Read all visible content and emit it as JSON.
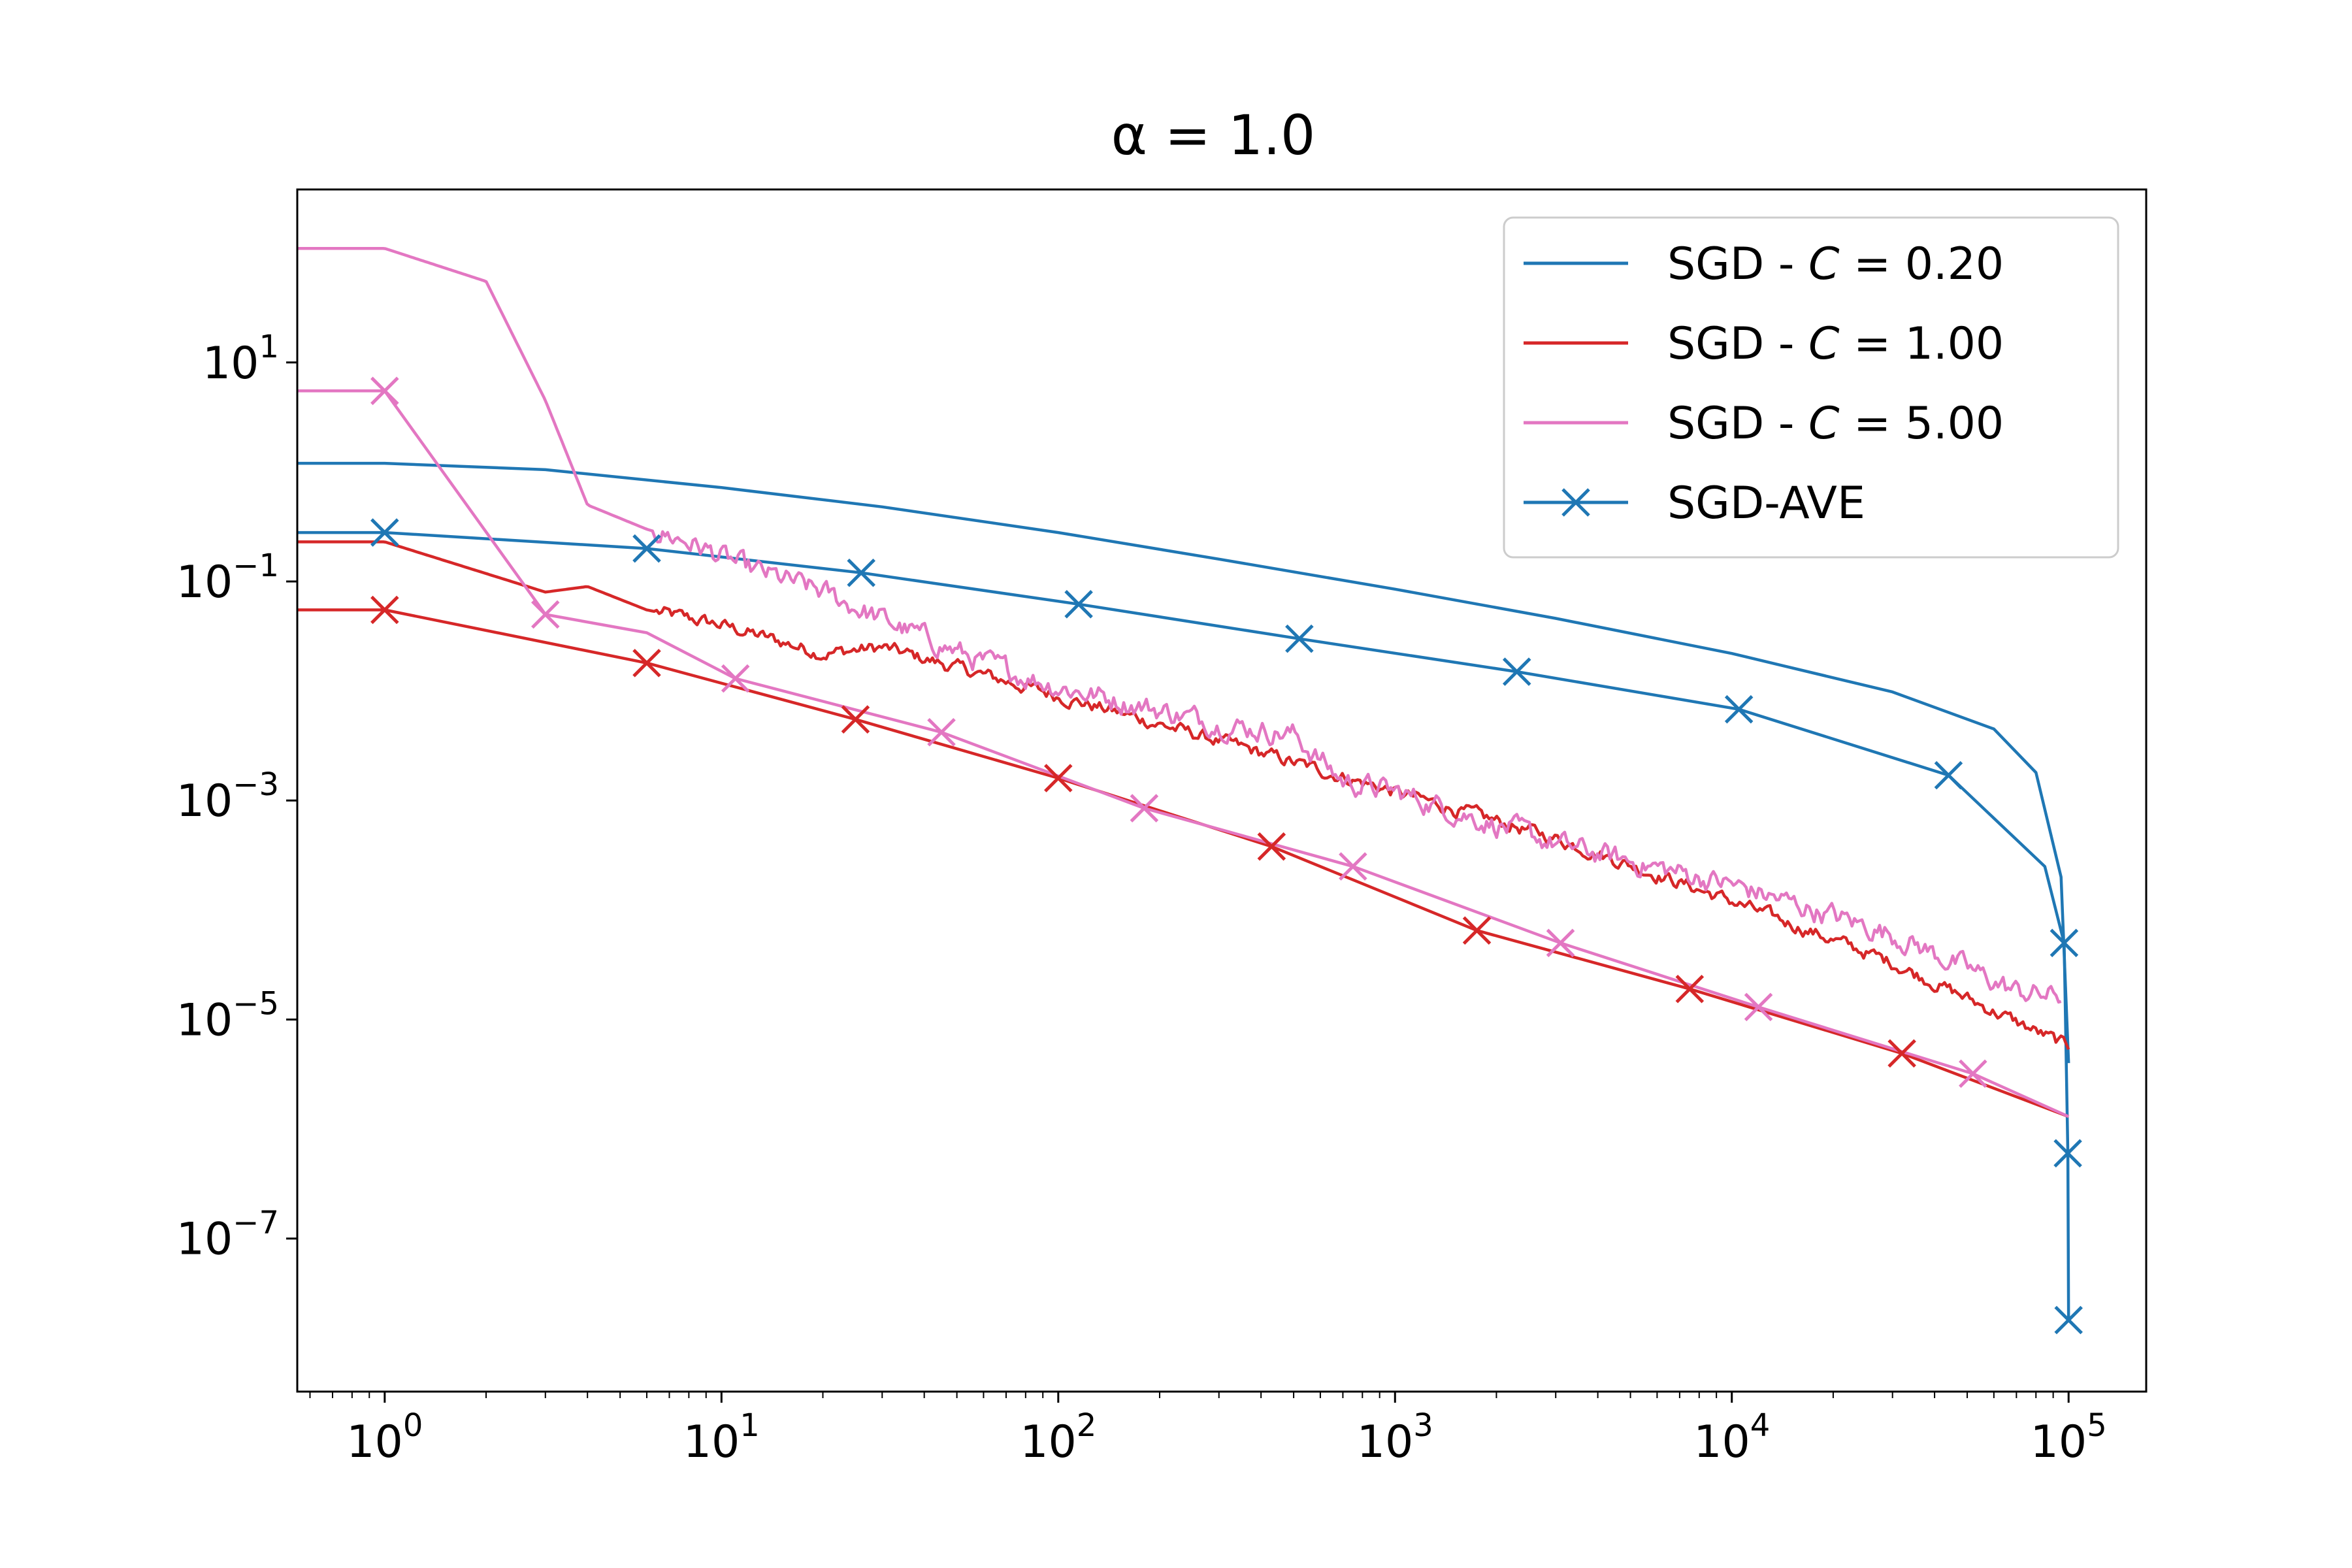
{
  "chart_data": {
    "type": "line",
    "title": "α = 1.0",
    "xscale": "log",
    "yscale": "log",
    "xlim": [
      0.55,
      170000
    ],
    "ylim": [
      4e-09,
      380
    ],
    "x_ticks": [
      {
        "base": "10",
        "exp": "0",
        "value": 1
      },
      {
        "base": "10",
        "exp": "1",
        "value": 10
      },
      {
        "base": "10",
        "exp": "2",
        "value": 100
      },
      {
        "base": "10",
        "exp": "3",
        "value": 1000
      },
      {
        "base": "10",
        "exp": "4",
        "value": 10000
      },
      {
        "base": "10",
        "exp": "5",
        "value": 100000
      }
    ],
    "y_ticks": [
      {
        "base": "10",
        "exp": "1",
        "value": 10
      },
      {
        "base": "10",
        "exp": "−1",
        "value": 0.1
      },
      {
        "base": "10",
        "exp": "−3",
        "value": 0.001
      },
      {
        "base": "10",
        "exp": "−5",
        "value": 1e-05
      },
      {
        "base": "10",
        "exp": "−7",
        "value": 1e-07
      }
    ],
    "legend_position": "top-right",
    "legend": [
      {
        "prefix": "SGD - ",
        "symbol": "C",
        "suffix": " = 0.20",
        "color": "#1f77b4",
        "marker": "line"
      },
      {
        "prefix": "SGD - ",
        "symbol": "C",
        "suffix": " = 1.00",
        "color": "#d62728",
        "marker": "line"
      },
      {
        "prefix": "SGD - ",
        "symbol": "C",
        "suffix": " = 5.00",
        "color": "#e377c2",
        "marker": "line"
      },
      {
        "prefix": "SGD-AVE",
        "symbol": "",
        "suffix": "",
        "color": "#1f77b4",
        "marker": "x"
      }
    ],
    "series": [
      {
        "name": "SGD - C = 0.20",
        "color": "#1f77b4",
        "marker": "none",
        "noise": 0,
        "points": [
          [
            0.55,
            1.2
          ],
          [
            1,
            1.2
          ],
          [
            3,
            1.05
          ],
          [
            10,
            0.72
          ],
          [
            30,
            0.48
          ],
          [
            100,
            0.28
          ],
          [
            300,
            0.16
          ],
          [
            1000,
            0.085
          ],
          [
            3000,
            0.046
          ],
          [
            10000,
            0.022
          ],
          [
            30000,
            0.0098
          ],
          [
            60000,
            0.0045
          ],
          [
            80000,
            0.0018
          ],
          [
            95000,
            0.0002
          ],
          [
            100000,
            4e-06
          ]
        ]
      },
      {
        "name": "SGD-AVE (C = 0.20)",
        "color": "#1f77b4",
        "marker": "x",
        "noise": 0,
        "points": [
          [
            0.55,
            0.28
          ],
          [
            1,
            0.28
          ],
          [
            6,
            0.2
          ],
          [
            26,
            0.12
          ],
          [
            115,
            0.062
          ],
          [
            520,
            0.03
          ],
          [
            2300,
            0.015
          ],
          [
            10500,
            0.0068
          ],
          [
            44000,
            0.0017
          ],
          [
            85000,
            0.00025
          ],
          [
            97000,
            5e-05
          ],
          [
            99500,
            6e-07
          ],
          [
            100000,
            1.8e-08
          ]
        ],
        "marker_points": [
          [
            1,
            0.28
          ],
          [
            6,
            0.2
          ],
          [
            26,
            0.12
          ],
          [
            115,
            0.062
          ],
          [
            520,
            0.03
          ],
          [
            2300,
            0.015
          ],
          [
            10500,
            0.0068
          ],
          [
            44000,
            0.0017
          ],
          [
            97000,
            5e-05
          ],
          [
            99500,
            6e-07
          ],
          [
            100000,
            1.8e-08
          ]
        ]
      },
      {
        "name": "SGD - C = 1.00",
        "color": "#d62728",
        "marker": "none",
        "noise": 0.1,
        "points": [
          [
            0.55,
            0.23
          ],
          [
            1,
            0.23
          ],
          [
            3,
            0.08
          ],
          [
            4,
            0.09
          ],
          [
            6,
            0.055
          ],
          [
            10,
            0.04
          ],
          [
            20,
            0.022
          ],
          [
            30,
            0.025
          ],
          [
            60,
            0.014
          ],
          [
            100,
            0.009
          ],
          [
            300,
            0.0035
          ],
          [
            1000,
            0.0012
          ],
          [
            3000,
            0.00045
          ],
          [
            10000,
            0.00012
          ],
          [
            30000,
            3.3e-05
          ],
          [
            100000,
            5.6e-06
          ]
        ]
      },
      {
        "name": "SGD-AVE (C = 1.00)",
        "color": "#d62728",
        "marker": "x",
        "noise": 0,
        "points": [
          [
            0.55,
            0.055
          ],
          [
            1,
            0.055
          ],
          [
            6,
            0.018
          ],
          [
            25,
            0.0055
          ],
          [
            100,
            0.0016
          ],
          [
            430,
            0.00038
          ],
          [
            1750,
            6.5e-05
          ],
          [
            7500,
            1.9e-05
          ],
          [
            32000,
            4.9e-06
          ],
          [
            100000,
            1.3e-06
          ]
        ],
        "marker_points": [
          [
            1,
            0.055
          ],
          [
            6,
            0.018
          ],
          [
            25,
            0.0055
          ],
          [
            100,
            0.0016
          ],
          [
            430,
            0.00038
          ],
          [
            1750,
            6.5e-05
          ],
          [
            7500,
            1.9e-05
          ],
          [
            32000,
            4.9e-06
          ]
        ]
      },
      {
        "name": "SGD - C = 5.00",
        "color": "#e377c2",
        "marker": "none",
        "noise": 0.17,
        "points": [
          [
            0.55,
            110
          ],
          [
            1,
            110
          ],
          [
            2,
            55
          ],
          [
            3,
            4.5
          ],
          [
            4,
            0.5
          ],
          [
            6,
            0.3
          ],
          [
            8,
            0.23
          ],
          [
            12,
            0.13
          ],
          [
            20,
            0.08
          ],
          [
            30,
            0.045
          ],
          [
            60,
            0.018
          ],
          [
            100,
            0.011
          ],
          [
            300,
            0.005
          ],
          [
            500,
            0.004
          ],
          [
            700,
            0.0015
          ],
          [
            1000,
            0.0012
          ],
          [
            3000,
            0.0004
          ],
          [
            10000,
            0.00017
          ],
          [
            30000,
            6e-05
          ],
          [
            70000,
            1.8e-05
          ],
          [
            95000,
            1.6e-05
          ]
        ]
      },
      {
        "name": "SGD-AVE (C = 5.00)",
        "color": "#e377c2",
        "marker": "x",
        "noise": 0,
        "points": [
          [
            0.55,
            5.5
          ],
          [
            1,
            5.5
          ],
          [
            3,
            0.05
          ],
          [
            6,
            0.034
          ],
          [
            11,
            0.013
          ],
          [
            45,
            0.0042
          ],
          [
            180,
            0.00085
          ],
          [
            750,
            0.00025
          ],
          [
            3100,
            5e-05
          ],
          [
            12000,
            1.3e-05
          ],
          [
            52000,
            3.2e-06
          ],
          [
            100000,
            1.3e-06
          ]
        ],
        "marker_points": [
          [
            1,
            5.5
          ],
          [
            3,
            0.05
          ],
          [
            11,
            0.013
          ],
          [
            45,
            0.0042
          ],
          [
            180,
            0.00085
          ],
          [
            750,
            0.00025
          ],
          [
            3100,
            5e-05
          ],
          [
            12000,
            1.3e-05
          ],
          [
            52000,
            3.2e-06
          ]
        ]
      }
    ]
  }
}
